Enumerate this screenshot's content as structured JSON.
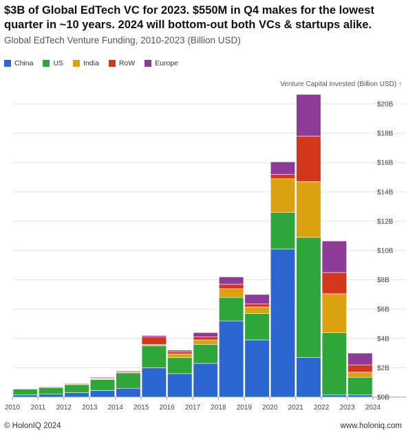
{
  "header": {
    "title": "$3B of Global EdTech VC for 2023. $550M in Q4 makes for the lowest quarter in ~10 years. 2024 will bottom-out both VCs & startups alike.",
    "subtitle": "Global EdTech Venture Funding, 2010-2023 (Billion USD)"
  },
  "footer": {
    "copyright": "© HolonIQ 2024",
    "site": "www.holoniq.com"
  },
  "colors": {
    "China": "#2b66d1",
    "US": "#2ea63a",
    "India": "#dba10f",
    "RoW": "#d2371c",
    "Europe": "#8e3a97"
  },
  "chart_data": {
    "type": "bar",
    "stacked": true,
    "categories": [
      "2010",
      "2011",
      "2012",
      "2013",
      "2014",
      "2015",
      "2016",
      "2017",
      "2018",
      "2019",
      "2020",
      "2021",
      "2022",
      "2023"
    ],
    "series": [
      {
        "name": "China",
        "values": [
          0.15,
          0.2,
          0.3,
          0.45,
          0.6,
          2.0,
          1.6,
          2.3,
          5.2,
          3.9,
          10.1,
          2.7,
          0.15,
          0.15
        ]
      },
      {
        "name": "US",
        "values": [
          0.4,
          0.45,
          0.55,
          0.75,
          1.05,
          1.5,
          1.1,
          1.3,
          1.6,
          1.8,
          2.5,
          8.2,
          4.25,
          1.2
        ]
      },
      {
        "name": "India",
        "values": [
          0.0,
          0.03,
          0.05,
          0.05,
          0.05,
          0.1,
          0.25,
          0.3,
          0.6,
          0.45,
          2.3,
          3.8,
          2.65,
          0.35
        ]
      },
      {
        "name": "RoW",
        "values": [
          0.02,
          0.05,
          0.05,
          0.05,
          0.05,
          0.5,
          0.15,
          0.2,
          0.3,
          0.2,
          0.3,
          3.1,
          1.45,
          0.5
        ]
      },
      {
        "name": "Europe",
        "values": [
          0.01,
          0.02,
          0.02,
          0.05,
          0.05,
          0.1,
          0.1,
          0.3,
          0.5,
          0.65,
          0.85,
          2.85,
          2.15,
          0.8
        ]
      }
    ],
    "y_axis_title": "Venture Capital Invested (Billion USD) ↑",
    "y_ticks": [
      "$0B",
      "$2B",
      "$4B",
      "$6B",
      "$8B",
      "$10B",
      "$12B",
      "$14B",
      "$16B",
      "$18B",
      "$20B"
    ],
    "x_ticks": [
      "2010",
      "2011",
      "2012",
      "2013",
      "2014",
      "2015",
      "2016",
      "2017",
      "2018",
      "2019",
      "2020",
      "2021",
      "2022",
      "2023",
      "2024"
    ],
    "ylim": [
      0,
      20.8
    ],
    "legend_position": "top-left",
    "grid": true,
    "y_axis_side": "right"
  }
}
